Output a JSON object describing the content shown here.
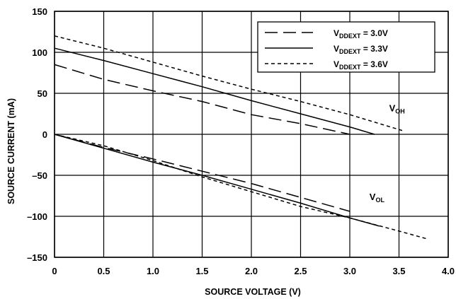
{
  "chart_data": {
    "type": "line",
    "xlabel": "SOURCE VOLTAGE (V)",
    "ylabel": "SOURCE CURRENT (mA)",
    "xlim": [
      0,
      4.0
    ],
    "ylim": [
      -150,
      150
    ],
    "x_ticks": [
      0,
      0.5,
      1.0,
      1.5,
      2.0,
      2.5,
      3.0,
      3.5,
      4.0
    ],
    "x_tick_labels": [
      "0",
      "0.5",
      "1.0",
      "1.5",
      "2.0",
      "2.5",
      "3.0",
      "3.5",
      "4.0"
    ],
    "y_ticks": [
      -150,
      -100,
      -50,
      0,
      50,
      100,
      150
    ],
    "y_tick_labels": [
      "–150",
      "–100",
      "–50",
      "0",
      "50",
      "100",
      "150"
    ],
    "grid": true,
    "legend_position": "top-right",
    "legend": [
      {
        "prefix": "V",
        "sub": "DDEXT",
        "suffix": " = 3.0V",
        "dash": "dashed",
        "color": "#000000"
      },
      {
        "prefix": "V",
        "sub": "DDEXT",
        "suffix": " = 3.3V",
        "dash": "solid",
        "color": "#000000"
      },
      {
        "prefix": "V",
        "sub": "DDEXT",
        "suffix": " = 3.6V",
        "dash": "dotted",
        "color": "#000000"
      }
    ],
    "annotations": [
      {
        "main": "V",
        "sub": "OH",
        "x": 3.4,
        "y": 28
      },
      {
        "main": "V",
        "sub": "OL",
        "x": 3.2,
        "y": -80
      }
    ],
    "series": [
      {
        "legend_index": 0,
        "curve": "VOH",
        "x": [
          0,
          0.5,
          1.0,
          1.5,
          2.0,
          2.5,
          3.0
        ],
        "y": [
          85,
          67,
          53,
          40,
          24,
          13,
          0
        ]
      },
      {
        "legend_index": 1,
        "curve": "VOH",
        "x": [
          0,
          0.5,
          1.0,
          1.5,
          2.0,
          2.5,
          3.0,
          3.25
        ],
        "y": [
          105,
          90,
          74,
          58,
          41,
          25,
          9,
          0
        ]
      },
      {
        "legend_index": 2,
        "curve": "VOH",
        "x": [
          0,
          0.5,
          1.0,
          1.5,
          2.0,
          2.5,
          3.0,
          3.55
        ],
        "y": [
          120,
          105,
          88,
          71,
          55,
          40,
          24,
          4
        ]
      },
      {
        "legend_index": 0,
        "curve": "VOL",
        "x": [
          0,
          0.5,
          1.0,
          1.5,
          2.0,
          2.5,
          3.0
        ],
        "y": [
          0,
          -16,
          -30,
          -45,
          -60,
          -77,
          -94
        ]
      },
      {
        "legend_index": 1,
        "curve": "VOL",
        "x": [
          0,
          0.5,
          1.0,
          1.5,
          2.0,
          2.5,
          3.0,
          3.3
        ],
        "y": [
          0,
          -17,
          -34,
          -50,
          -67,
          -84,
          -102,
          -112
        ]
      },
      {
        "legend_index": 2,
        "curve": "VOL",
        "x": [
          0,
          0.5,
          1.0,
          1.5,
          2.0,
          2.5,
          3.0,
          3.5,
          3.8
        ],
        "y": [
          0,
          -14,
          -32,
          -52,
          -70,
          -88,
          -102,
          -118,
          -128
        ]
      }
    ]
  }
}
